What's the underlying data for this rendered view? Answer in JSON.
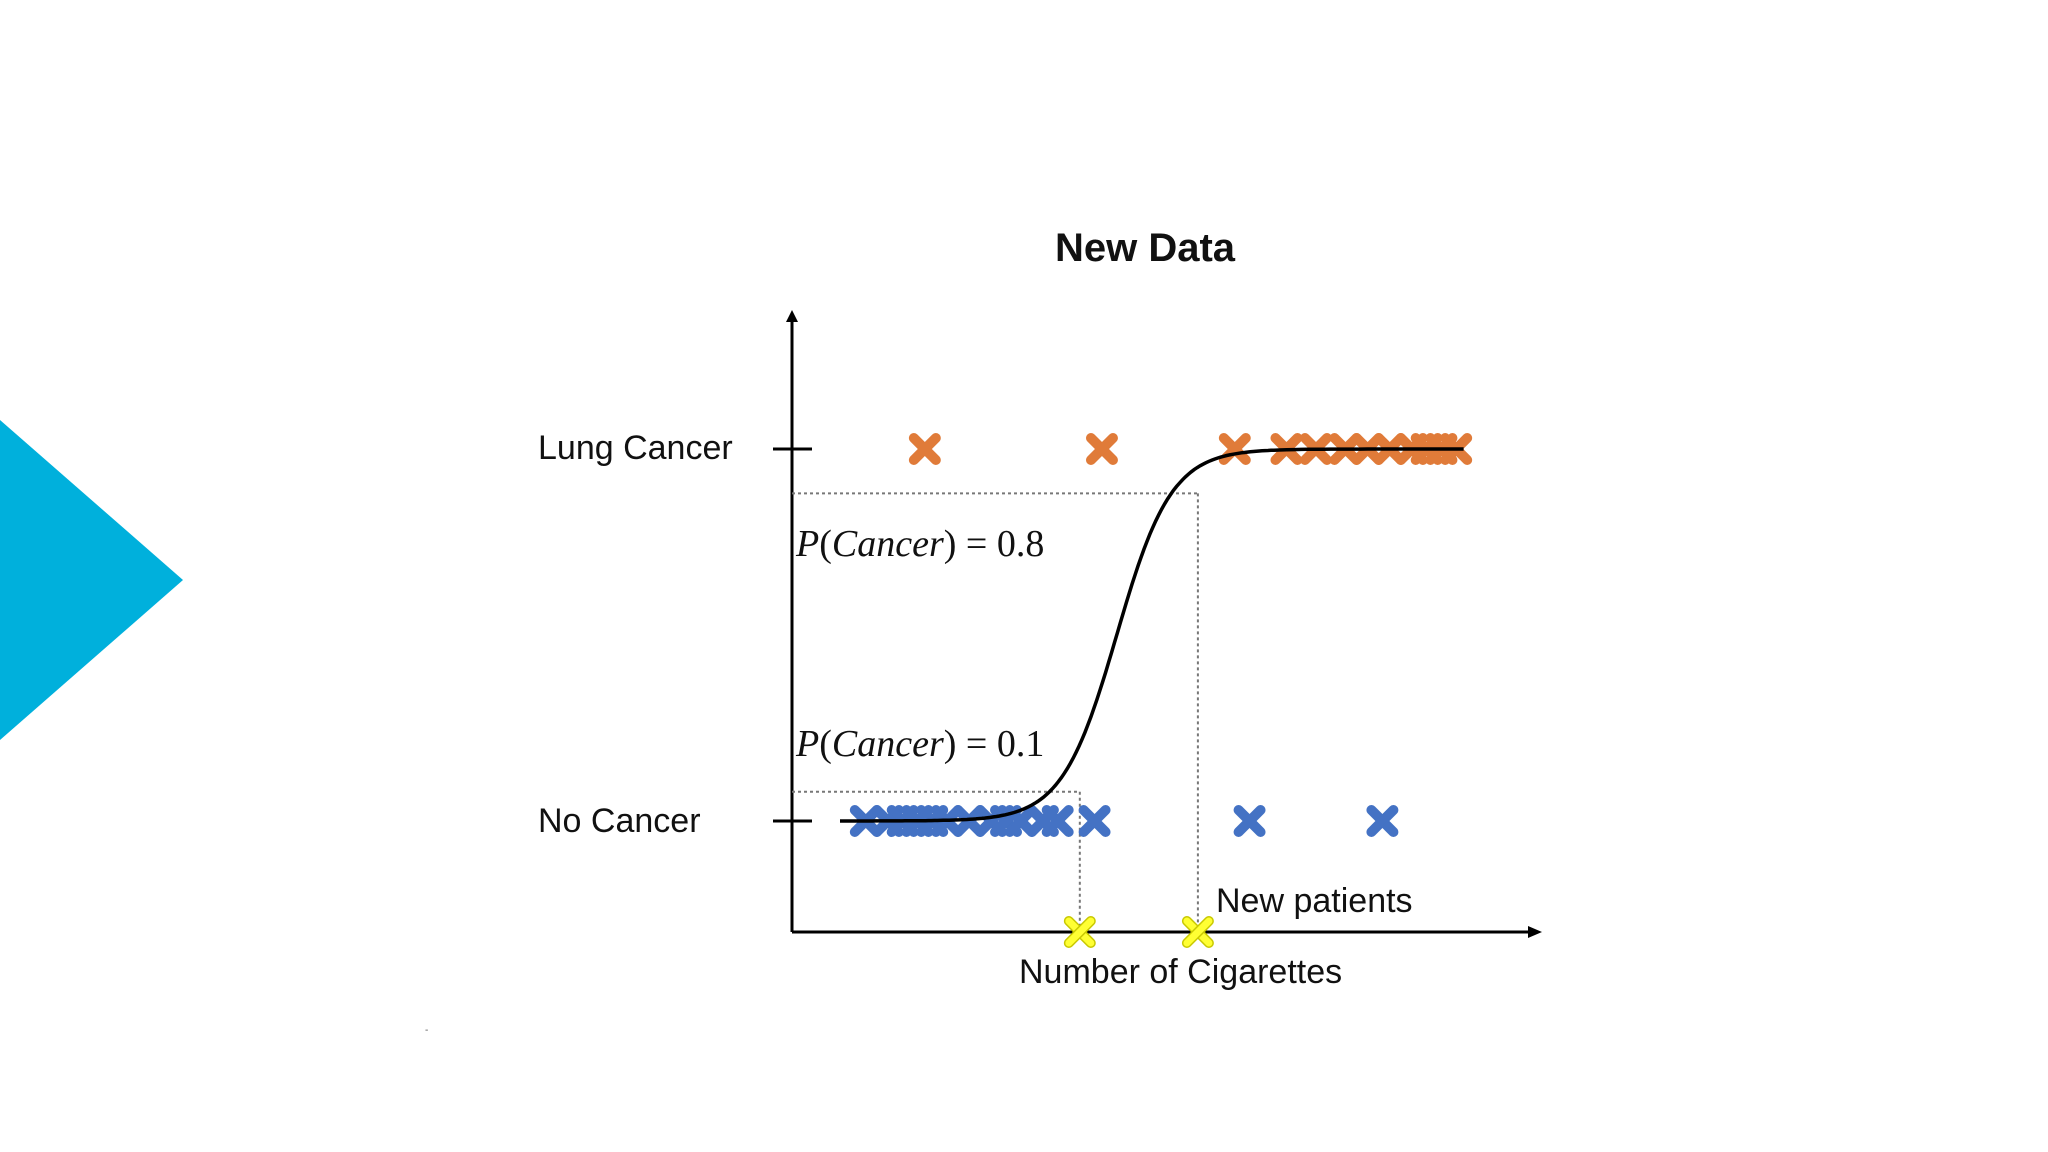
{
  "slide": {
    "title": "New Data",
    "accent_color": "#00b0dc",
    "footer_mark": "-"
  },
  "chart_data": {
    "type": "scatter",
    "title": "New Data",
    "xlabel": "Number of Cigarettes",
    "ylabel": "",
    "categories_y": [
      "No Cancer",
      "Lung Cancer"
    ],
    "series": [
      {
        "color": "#e07b39",
        "class": "Lung Cancer",
        "x": [
          0.18,
          0.42,
          0.6,
          0.67,
          0.71,
          0.75,
          0.78,
          0.81,
          0.84,
          0.86,
          0.88,
          0.9
        ]
      },
      {
        "color": "#4472c4",
        "class": "No Cancer",
        "x": [
          0.1,
          0.13,
          0.15,
          0.17,
          0.19,
          0.21,
          0.24,
          0.27,
          0.29,
          0.31,
          0.34,
          0.36,
          0.41,
          0.62,
          0.8
        ]
      },
      {
        "color": "#ffff33",
        "class": "New patients",
        "x": [
          0.39,
          0.55
        ]
      }
    ],
    "curve": {
      "type": "logistic",
      "color": "#000000"
    },
    "annotations": {
      "p_high": {
        "prefix": "P",
        "open": "(",
        "word": "Cancer",
        "close": ")",
        "eq": " = ",
        "value": "0.8"
      },
      "p_low": {
        "prefix": "P",
        "open": "(",
        "word": "Cancer",
        "close": ")",
        "eq": " = ",
        "value": "0.1"
      },
      "new_patients": "New patients"
    },
    "grid": false,
    "legend": "none"
  }
}
